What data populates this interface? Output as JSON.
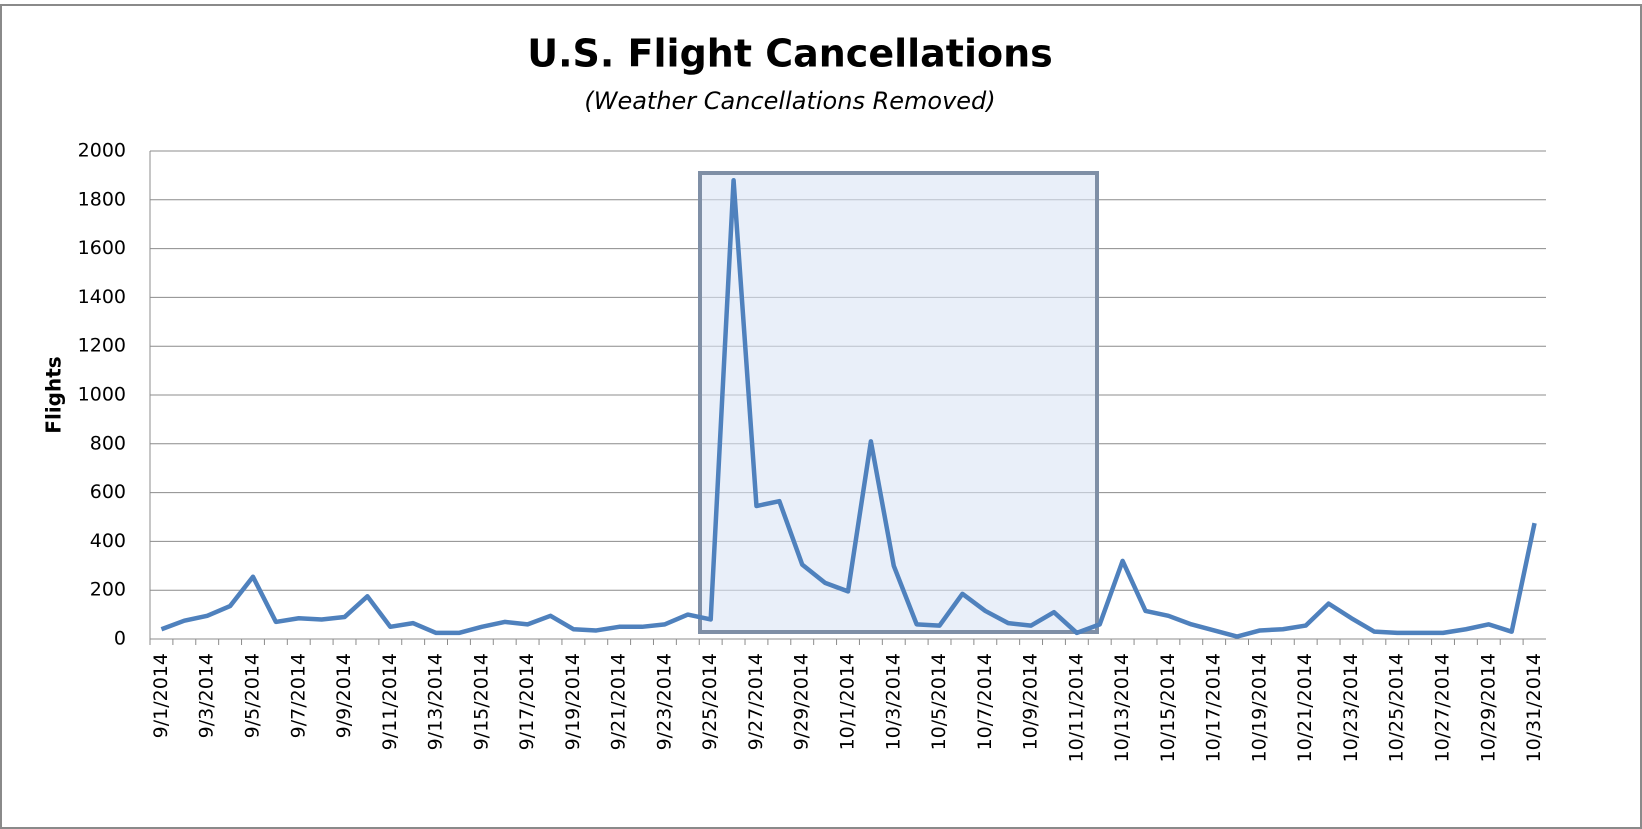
{
  "chart_data": {
    "type": "line",
    "title": "U.S. Flight Cancellations",
    "subtitle": "(Weather Cancellations Removed)",
    "y_label": "Flights",
    "categories": [
      "9/1/2014",
      null,
      "9/3/2014",
      null,
      "9/5/2014",
      null,
      "9/7/2014",
      null,
      "9/9/2014",
      null,
      "9/11/2014",
      null,
      "9/13/2014",
      null,
      "9/15/2014",
      null,
      "9/17/2014",
      null,
      "9/19/2014",
      null,
      "9/21/2014",
      null,
      "9/23/2014",
      null,
      "9/25/2014",
      null,
      "9/27/2014",
      null,
      "9/29/2014",
      null,
      "10/1/2014",
      null,
      "10/3/2014",
      null,
      "10/5/2014",
      null,
      "10/7/2014",
      null,
      "10/9/2014",
      null,
      "10/11/2014",
      null,
      "10/13/2014",
      null,
      "10/15/2014",
      null,
      "10/17/2014",
      null,
      "10/19/2014",
      null,
      "10/21/2014",
      null,
      "10/23/2014",
      null,
      "10/25/2014",
      null,
      "10/27/2014",
      null,
      "10/29/2014",
      null,
      "10/31/2014"
    ],
    "series": [
      {
        "name": "Flights",
        "color": "#4f81bd",
        "values": [
          40,
          75,
          95,
          135,
          255,
          70,
          85,
          80,
          90,
          175,
          50,
          65,
          25,
          25,
          50,
          70,
          60,
          95,
          40,
          35,
          50,
          50,
          60,
          100,
          80,
          1880,
          545,
          565,
          305,
          230,
          195,
          810,
          300,
          60,
          55,
          185,
          115,
          65,
          55,
          110,
          25,
          60,
          320,
          115,
          95,
          60,
          35,
          10,
          35,
          40,
          55,
          145,
          85,
          30,
          25,
          25,
          25,
          40,
          60,
          30,
          475
        ]
      }
    ],
    "ylim": [
      0,
      2000
    ],
    "yticks": [
      0,
      200,
      400,
      600,
      800,
      1000,
      1200,
      1400,
      1600,
      1800,
      2000
    ],
    "grid": true,
    "legend": false
  }
}
